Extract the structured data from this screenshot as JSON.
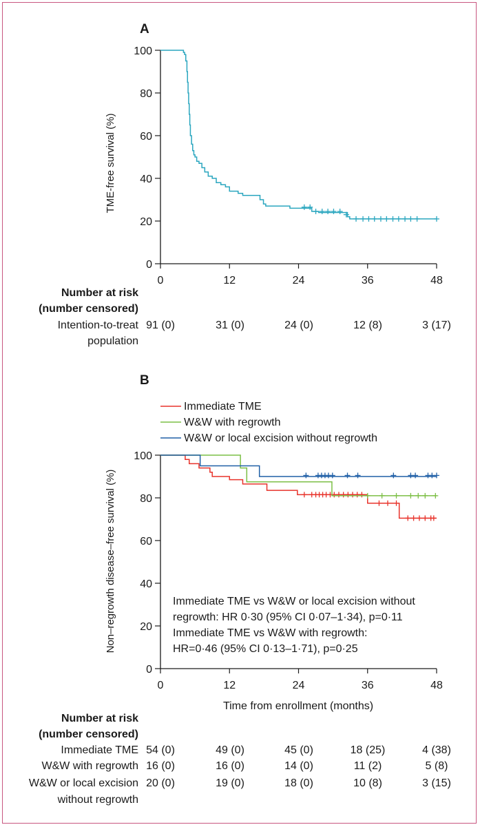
{
  "chart_data": [
    {
      "panel": "A",
      "type": "line",
      "ylabel": "TME-free survival (%)",
      "xlabel": "",
      "xlim": [
        0,
        48
      ],
      "ylim": [
        0,
        100
      ],
      "xticks": [
        "0",
        "12",
        "24",
        "36",
        "48"
      ],
      "yticks": [
        "0",
        "20",
        "40",
        "60",
        "80",
        "100"
      ],
      "series": [
        {
          "name": "",
          "color": "#2aa6bf",
          "step": [
            [
              0,
              100
            ],
            [
              4,
              99
            ],
            [
              4.2,
              98
            ],
            [
              4.4,
              95
            ],
            [
              4.6,
              90
            ],
            [
              4.7,
              85
            ],
            [
              4.8,
              80
            ],
            [
              4.9,
              75
            ],
            [
              5.0,
              70
            ],
            [
              5.1,
              65
            ],
            [
              5.2,
              60
            ],
            [
              5.4,
              56
            ],
            [
              5.6,
              53
            ],
            [
              5.8,
              51
            ],
            [
              6.0,
              50
            ],
            [
              6.3,
              48
            ],
            [
              6.7,
              47
            ],
            [
              7.2,
              45
            ],
            [
              7.7,
              43
            ],
            [
              8.3,
              41
            ],
            [
              9.0,
              40
            ],
            [
              9.7,
              38
            ],
            [
              10.5,
              37
            ],
            [
              11.3,
              36
            ],
            [
              12.0,
              34
            ],
            [
              13.5,
              33
            ],
            [
              14.3,
              32
            ],
            [
              17.3,
              30
            ],
            [
              17.9,
              28
            ],
            [
              18.3,
              27
            ],
            [
              22.5,
              26
            ],
            [
              26.3,
              24.5
            ],
            [
              27.5,
              24
            ],
            [
              32.5,
              22
            ],
            [
              32.9,
              21
            ],
            [
              48,
              21
            ]
          ],
          "censored": [
            [
              25.0,
              26.5
            ],
            [
              26.0,
              26.5
            ],
            [
              27.0,
              24.5
            ],
            [
              28.1,
              24.5
            ],
            [
              29.1,
              24.5
            ],
            [
              30.1,
              24.5
            ],
            [
              31.2,
              24.5
            ],
            [
              32.3,
              23
            ],
            [
              34.0,
              21
            ],
            [
              35.2,
              21
            ],
            [
              36.2,
              21
            ],
            [
              37.2,
              21
            ],
            [
              38.3,
              21
            ],
            [
              39.3,
              21
            ],
            [
              40.4,
              21
            ],
            [
              41.4,
              21
            ],
            [
              42.5,
              21
            ],
            [
              43.5,
              21
            ],
            [
              44.6,
              21
            ],
            [
              48.0,
              21
            ]
          ]
        }
      ]
    },
    {
      "panel": "B",
      "type": "line",
      "ylabel": "Non–regrowth disease–free survival (%)",
      "xlabel": "Time from enrollment (months)",
      "xlim": [
        0,
        48
      ],
      "ylim": [
        0,
        100
      ],
      "xticks": [
        "0",
        "12",
        "24",
        "36",
        "48"
      ],
      "yticks": [
        "0",
        "20",
        "40",
        "60",
        "80",
        "100"
      ],
      "series": [
        {
          "name": "Immediate TME",
          "color": "#e8322a",
          "step": [
            [
              0,
              100
            ],
            [
              4.3,
              98
            ],
            [
              5.0,
              96
            ],
            [
              6.7,
              94
            ],
            [
              8.6,
              92
            ],
            [
              9.0,
              90
            ],
            [
              12.0,
              88.5
            ],
            [
              14.3,
              86.5
            ],
            [
              18.5,
              83.5
            ],
            [
              23.8,
              81.5
            ],
            [
              36.0,
              77.5
            ],
            [
              41.5,
              70.5
            ],
            [
              48,
              70.5
            ]
          ],
          "censored": [
            [
              25.0,
              81.5
            ],
            [
              26.3,
              81.5
            ],
            [
              27.0,
              81.5
            ],
            [
              27.6,
              81.5
            ],
            [
              28.2,
              81.5
            ],
            [
              28.8,
              81.5
            ],
            [
              29.5,
              81.5
            ],
            [
              30.2,
              81.5
            ],
            [
              31.0,
              81.5
            ],
            [
              31.8,
              81.5
            ],
            [
              32.6,
              81.5
            ],
            [
              33.4,
              81.5
            ],
            [
              34.2,
              81.5
            ],
            [
              35.0,
              81.5
            ],
            [
              38.0,
              77.5
            ],
            [
              39.5,
              77.5
            ],
            [
              41.0,
              77.5
            ],
            [
              43.0,
              70.5
            ],
            [
              44.0,
              70.5
            ],
            [
              45.0,
              70.5
            ],
            [
              46.0,
              70.5
            ],
            [
              47.0,
              70.5
            ],
            [
              47.5,
              70.5
            ]
          ]
        },
        {
          "name": "W&W with regrowth",
          "color": "#7cbf45",
          "step": [
            [
              0,
              100
            ],
            [
              6.8,
              100
            ],
            [
              13.5,
              100
            ],
            [
              13.9,
              94
            ],
            [
              15.0,
              87.5
            ],
            [
              29.3,
              87.5
            ],
            [
              29.8,
              81
            ],
            [
              48,
              81
            ]
          ],
          "censored": [
            [
              36.0,
              81
            ],
            [
              38.5,
              81
            ],
            [
              41.0,
              81
            ],
            [
              43.5,
              81
            ],
            [
              44.8,
              81
            ],
            [
              46.0,
              81
            ],
            [
              47.8,
              81
            ]
          ]
        },
        {
          "name": "W&W or local excision without regrowth",
          "color": "#1f5fa6",
          "step": [
            [
              0,
              100
            ],
            [
              6.8,
              100
            ],
            [
              6.9,
              95
            ],
            [
              16.5,
              95
            ],
            [
              17.2,
              90
            ],
            [
              48,
              90
            ]
          ],
          "censored": [
            [
              25.3,
              90.5
            ],
            [
              27.4,
              90.5
            ],
            [
              28.0,
              90.5
            ],
            [
              28.6,
              90.5
            ],
            [
              29.2,
              90.5
            ],
            [
              29.9,
              90.5
            ],
            [
              32.5,
              90.5
            ],
            [
              34.3,
              90.5
            ],
            [
              40.5,
              90.5
            ],
            [
              43.5,
              90.5
            ],
            [
              44.3,
              90.5
            ],
            [
              46.5,
              90.5
            ],
            [
              47.2,
              90.5
            ],
            [
              48.0,
              90.5
            ]
          ]
        }
      ],
      "annotation": [
        "Immediate TME vs W&W or local excision without",
        "regrowth: HR 0·30 (95% CI 0·07–1·34), p=0·11",
        "Immediate TME vs W&W with regrowth:",
        "HR=0·46 (95% CI 0·13–1·71), p=0·25"
      ]
    }
  ],
  "panel_a": {
    "letter": "A",
    "risk_title_1": "Number at risk",
    "risk_title_2": "(number censored)",
    "rows": [
      {
        "label_1": "Intention-to-treat",
        "label_2": "population",
        "values": [
          "91 (0)",
          "31 (0)",
          "24 (0)",
          "12 (8)",
          "3 (17)"
        ]
      }
    ]
  },
  "panel_b": {
    "letter": "B",
    "risk_title_1": "Number at risk",
    "risk_title_2": "(number censored)",
    "rows": [
      {
        "label_1": "Immediate TME",
        "label_2": "",
        "values": [
          "54 (0)",
          "49 (0)",
          "45 (0)",
          "18 (25)",
          "4 (38)"
        ]
      },
      {
        "label_1": "W&W with regrowth",
        "label_2": "",
        "values": [
          "16 (0)",
          "16 (0)",
          "14 (0)",
          "11 (2)",
          "5 (8)"
        ]
      },
      {
        "label_1": "W&W or local excision",
        "label_2": "without regrowth",
        "values": [
          "20 (0)",
          "19 (0)",
          "18 (0)",
          "10 (8)",
          "3 (15)"
        ]
      }
    ]
  },
  "colors": {
    "frame": "#c8557f",
    "axis": "#1a1a1a"
  }
}
